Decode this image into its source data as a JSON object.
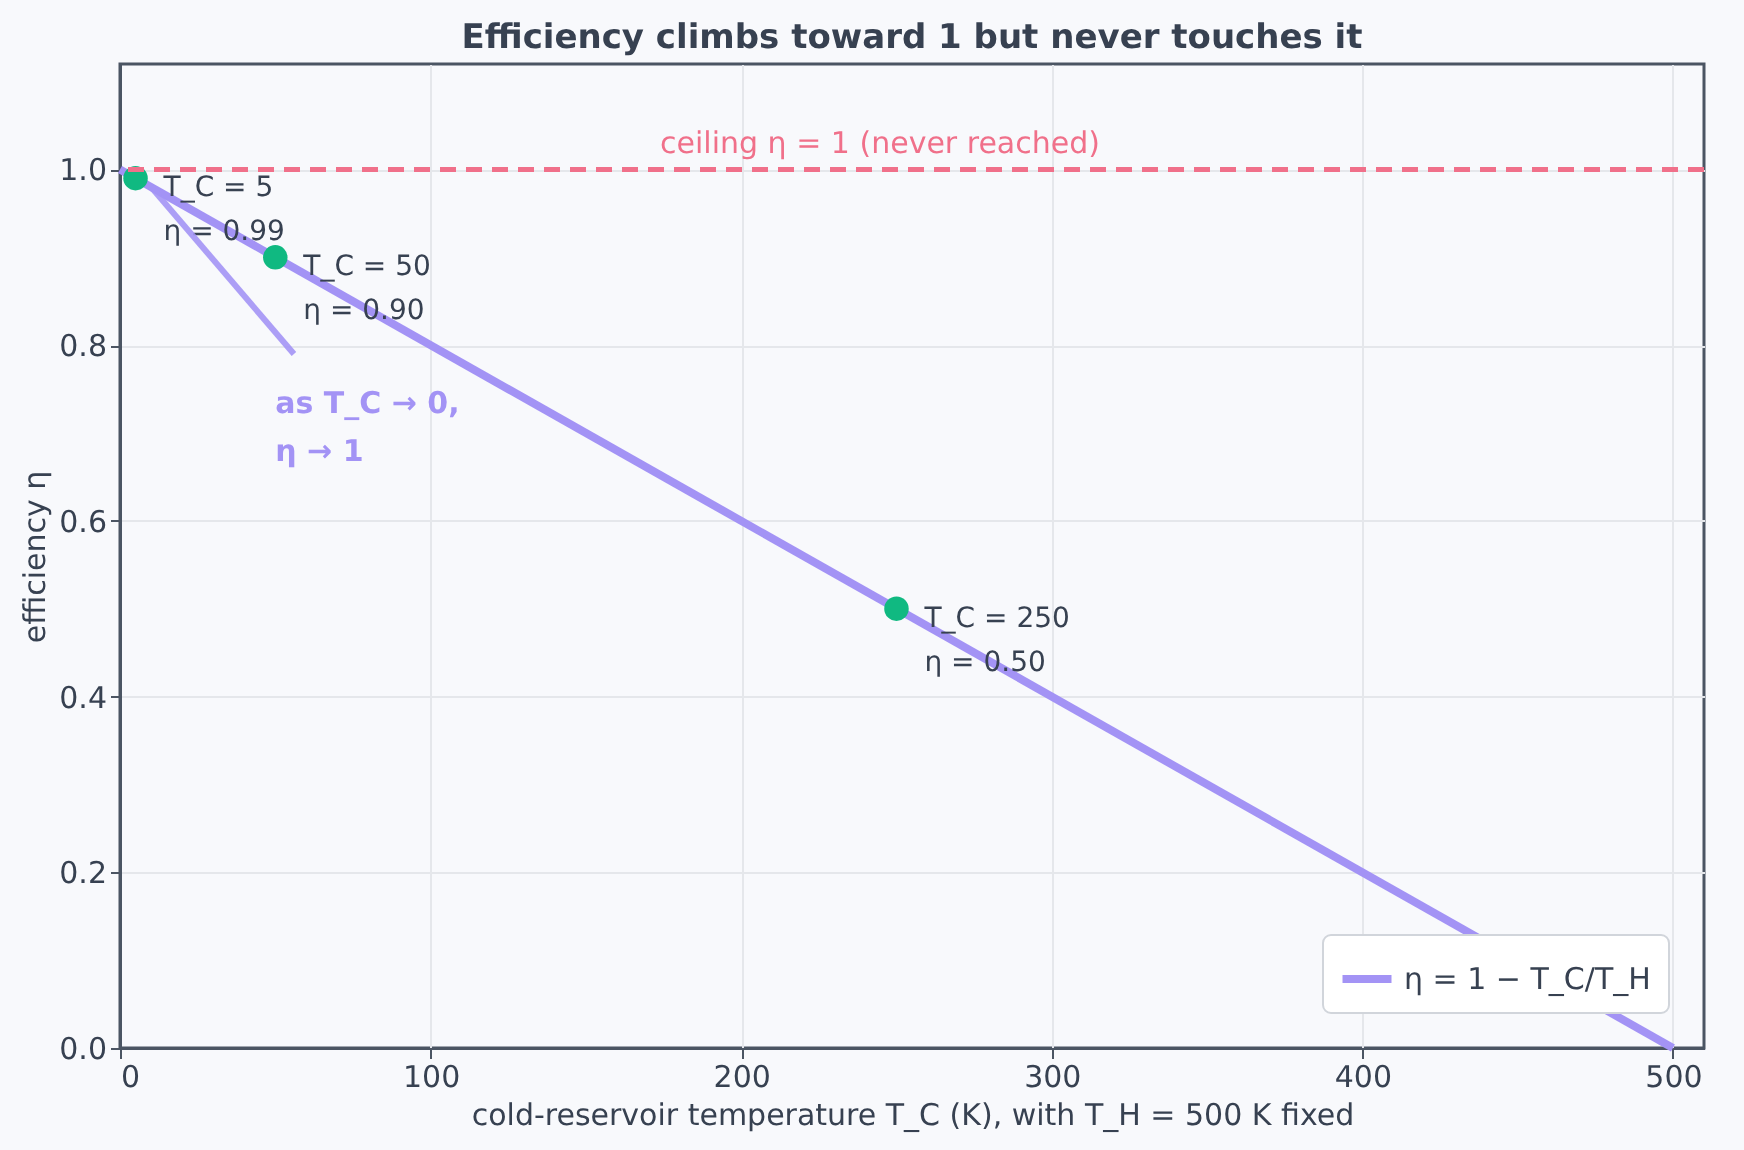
{
  "chart_data": {
    "type": "line",
    "title": "Efficiency climbs toward 1 but never touches it",
    "xlabel": "cold-reservoir temperature  T_C  (K),  with T_H = 500 K fixed",
    "ylabel": "efficiency  η",
    "series": [
      {
        "name": "η = 1 − T_C/T_H",
        "color": "#a393f5",
        "x": [
          0,
          500
        ],
        "values": [
          1,
          0
        ]
      },
      {
        "color": "#10b981",
        "type": "scatter",
        "marker": "circle",
        "x": [
          5,
          50,
          250
        ],
        "values": [
          0.99,
          0.9,
          0.5
        ]
      }
    ],
    "xlim": [
      0,
      510
    ],
    "ylim": [
      0,
      1.12
    ],
    "xticks": [
      0,
      100,
      200,
      300,
      400,
      500
    ],
    "yticks": [
      {
        "value": 0,
        "label": "0.0"
      },
      0.2,
      0.4,
      0.6,
      0.8,
      {
        "value": 1,
        "label": "1.0"
      }
    ],
    "ref_lines": [
      {
        "axis": "y",
        "value": 1,
        "label": "ceiling η = 1 (never reached)",
        "color": "#f0708a",
        "line_style": "dashed"
      }
    ],
    "annotations": [
      {
        "text": "T_C = 5\nη = 0.99",
        "x": 5,
        "y": 0.99
      },
      {
        "text": "T_C = 50\nη = 0.90",
        "x": 50,
        "y": 0.9
      },
      {
        "text": "T_C = 250\nη = 0.50",
        "x": 250,
        "y": 0.5
      },
      {
        "text": "as T_C → 0,\nη → 1",
        "x": 10,
        "y": 0.98
      }
    ],
    "grid": true,
    "legend": "bottom right"
  }
}
